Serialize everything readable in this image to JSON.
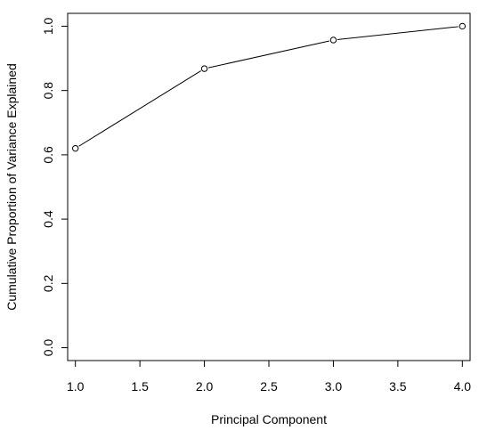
{
  "chart_data": {
    "type": "line",
    "title": "",
    "xlabel": "Principal Component",
    "ylabel": "Cumulative Proportion of Variance Explained",
    "x": [
      1,
      2,
      3,
      4
    ],
    "series": [
      {
        "values": [
          0.62,
          0.868,
          0.957,
          1.0
        ]
      }
    ],
    "xlim": [
      0.94,
      4.06
    ],
    "ylim": [
      -0.04,
      1.04
    ],
    "xticks": [
      1.0,
      1.5,
      2.0,
      2.5,
      3.0,
      3.5,
      4.0
    ],
    "xtick_labels": [
      "1.0",
      "1.5",
      "2.0",
      "2.5",
      "3.0",
      "3.5",
      "4.0"
    ],
    "yticks": [
      0.0,
      0.2,
      0.4,
      0.6,
      0.8,
      1.0
    ],
    "ytick_labels": [
      "0.0",
      "0.2",
      "0.4",
      "0.6",
      "0.8",
      "1.0"
    ],
    "markers": "open-circle",
    "grid": false,
    "legend": "none",
    "colors": {
      "line": "#000000",
      "marker_fill": "#ffffff",
      "axes": "#000000"
    }
  }
}
